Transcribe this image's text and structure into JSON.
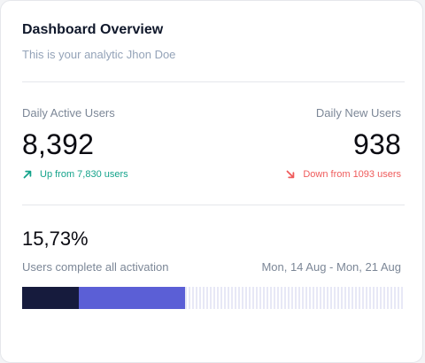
{
  "header": {
    "title": "Dashboard Overview",
    "subtitle": "This is your analytic Jhon Doe"
  },
  "metrics": {
    "daily_active": {
      "label": "Daily Active Users",
      "value": "8,392",
      "trend_text": "Up from 7,830 users",
      "trend_icon": "arrow-up-right-icon",
      "trend_color": "#14a38b"
    },
    "daily_new": {
      "label": "Daily New Users",
      "value": "938",
      "trend_text": "Down from 1093 users",
      "trend_icon": "arrow-down-right-icon",
      "trend_color": "#ef5b5b"
    }
  },
  "activation": {
    "percent": "15,73%",
    "label": "Users complete all activation",
    "date_range": "Mon, 14 Aug - Mon, 21 Aug",
    "segments": [
      {
        "fraction": 0.148,
        "color": "#161b3d"
      },
      {
        "fraction": 0.278,
        "color": "#5b5fd6"
      }
    ],
    "track_color": "#e7e8f6"
  }
}
